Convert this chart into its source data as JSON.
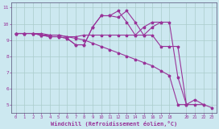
{
  "xlabel": "Windchill (Refroidissement éolien,°C)",
  "bg_color": "#cce8f0",
  "grid_color": "#aacccc",
  "line_color": "#993399",
  "spine_color": "#666688",
  "xlim": [
    -0.5,
    23.5
  ],
  "ylim": [
    4.5,
    11.3
  ],
  "xticks": [
    0,
    1,
    2,
    3,
    4,
    5,
    6,
    7,
    8,
    9,
    10,
    11,
    12,
    13,
    14,
    15,
    16,
    17,
    18,
    20,
    21,
    22,
    23
  ],
  "yticks": [
    5,
    6,
    7,
    8,
    9,
    10,
    11
  ],
  "series": [
    [
      9.4,
      9.4,
      9.4,
      9.3,
      9.3,
      9.3,
      9.2,
      9.2,
      9.3,
      9.3,
      9.3,
      9.3,
      9.3,
      9.3,
      9.3,
      9.3,
      9.3,
      8.6,
      8.6,
      8.6,
      5.0,
      5.0,
      5.0,
      4.8
    ],
    [
      9.4,
      9.4,
      9.4,
      9.3,
      9.2,
      9.2,
      9.1,
      8.7,
      8.7,
      9.8,
      10.5,
      10.5,
      10.4,
      10.8,
      10.1,
      9.3,
      9.8,
      10.1,
      10.1,
      6.7,
      5.0,
      5.3,
      5.0,
      null
    ],
    [
      9.4,
      9.4,
      9.4,
      9.3,
      9.2,
      9.2,
      9.1,
      8.7,
      8.7,
      9.8,
      10.5,
      10.5,
      10.8,
      10.1,
      9.3,
      9.8,
      10.1,
      10.1,
      null,
      null,
      null,
      null,
      null,
      null
    ],
    [
      9.4,
      9.4,
      9.4,
      9.4,
      9.3,
      9.3,
      9.2,
      9.1,
      9.0,
      8.8,
      8.6,
      8.4,
      8.2,
      8.0,
      7.8,
      7.6,
      7.4,
      7.1,
      6.8,
      5.0,
      5.0,
      null,
      null,
      null
    ]
  ]
}
